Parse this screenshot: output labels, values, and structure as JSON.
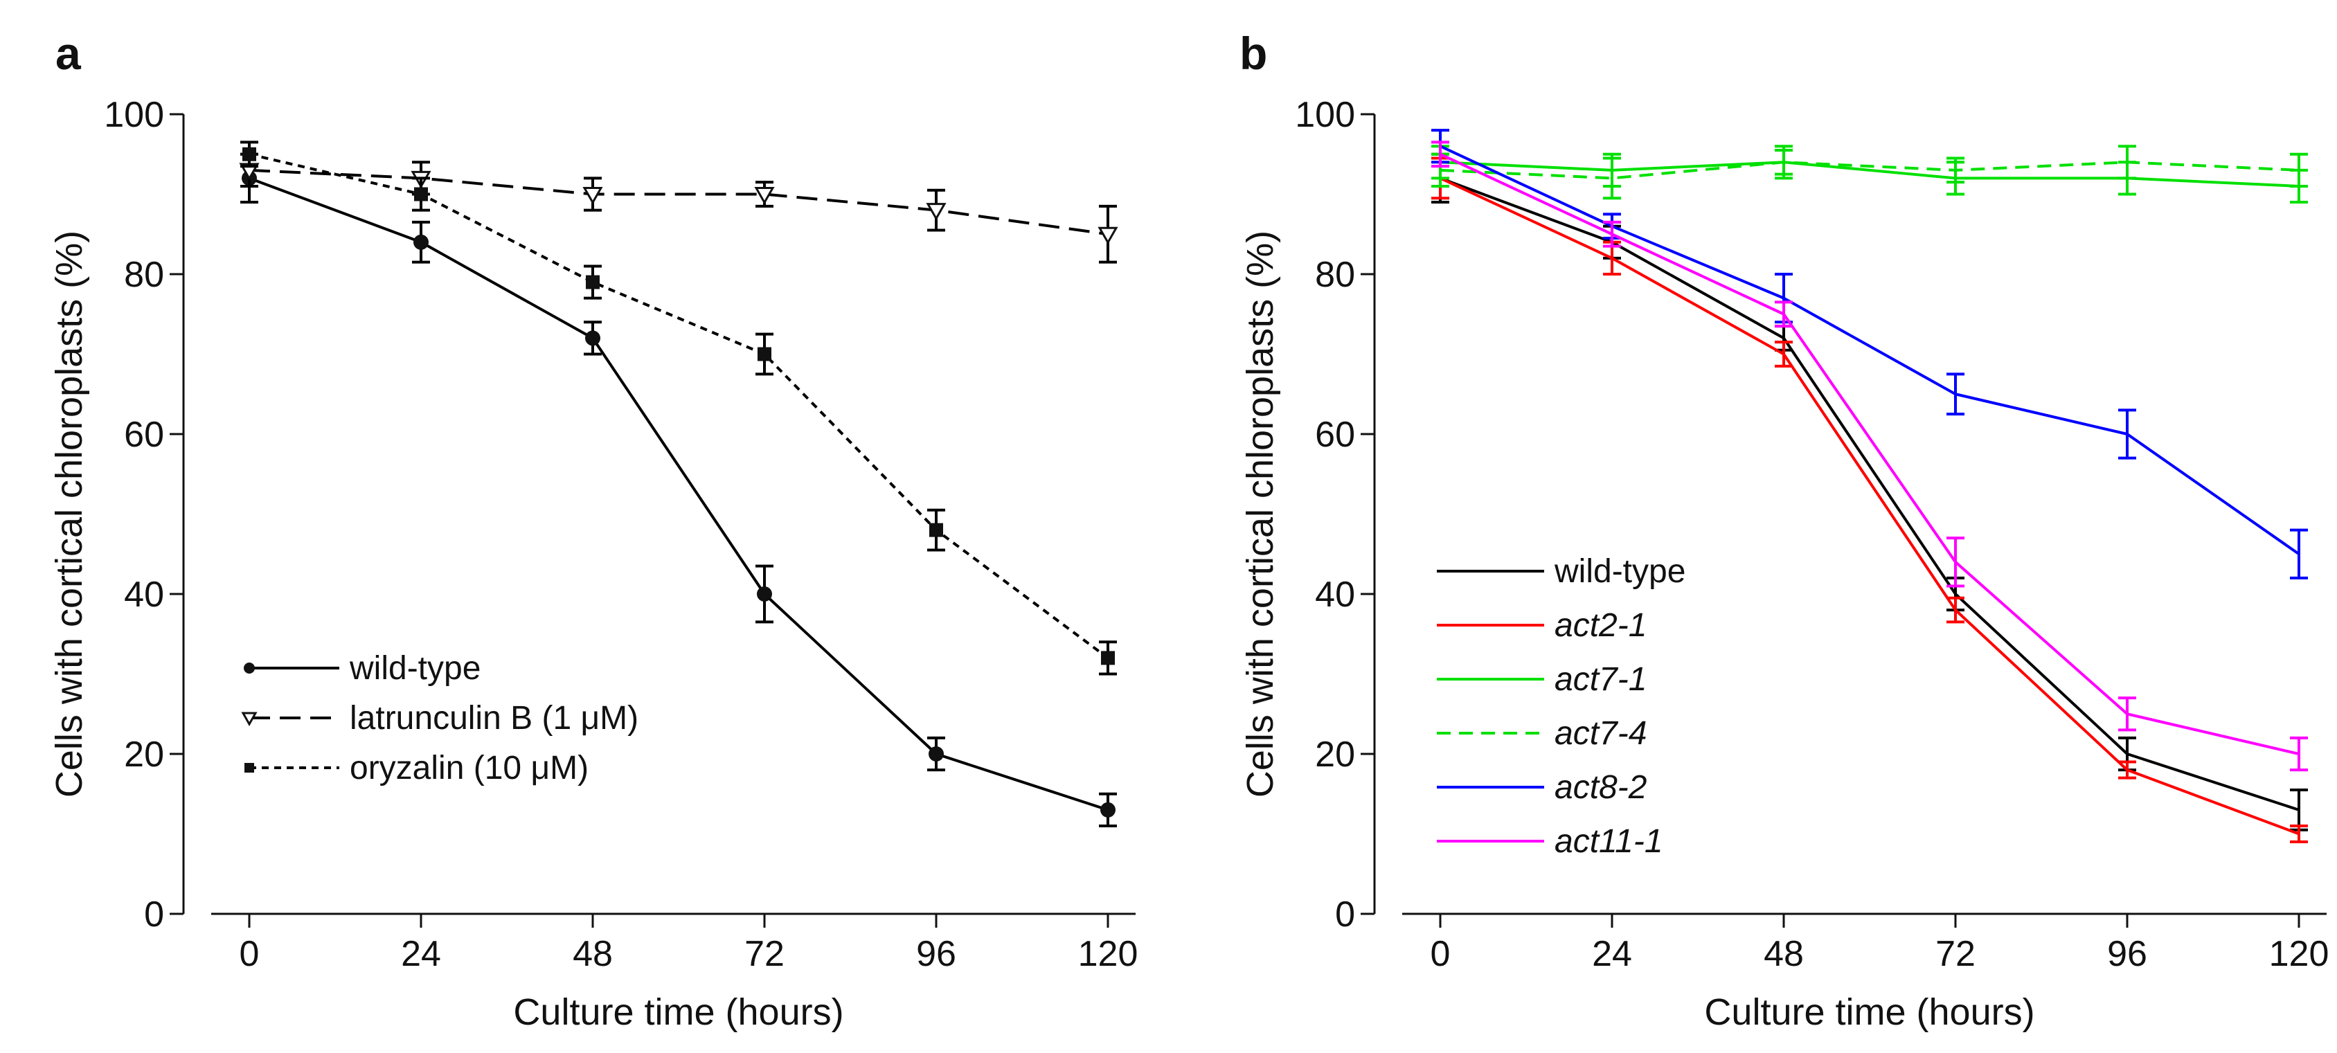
{
  "chart_data": [
    {
      "type": "line",
      "panel_label": "a",
      "title": "",
      "xlabel": "Culture time (hours)",
      "ylabel": "Cells with cortical chloroplasts (%)",
      "xlim": [
        0,
        120
      ],
      "ylim": [
        0,
        100
      ],
      "x_ticks": [
        "0",
        "24",
        "48",
        "72",
        "96",
        "120"
      ],
      "y_ticks": [
        "0",
        "20",
        "40",
        "60",
        "80",
        "100"
      ],
      "grid": false,
      "legend_position": "bottom-left",
      "x": [
        0,
        24,
        48,
        72,
        96,
        120
      ],
      "series": [
        {
          "name": "wild-type",
          "values": [
            92,
            84,
            72,
            40,
            20,
            13
          ],
          "errors": [
            3,
            2.5,
            2,
            3.5,
            2,
            2
          ],
          "color": "#000000",
          "dash": "solid",
          "marker": "circle"
        },
        {
          "name": "latrunculin B (1 μM)",
          "values": [
            93,
            92,
            90,
            90,
            88,
            85
          ],
          "errors": [
            2,
            2,
            2,
            1.5,
            2.5,
            3.5
          ],
          "color": "#000000",
          "dash": "long-dash",
          "marker": "triangle-down"
        },
        {
          "name": "oryzalin (10 μM)",
          "values": [
            95,
            90,
            79,
            70,
            48,
            32
          ],
          "errors": [
            1.5,
            2,
            2,
            2.5,
            2.5,
            2
          ],
          "color": "#000000",
          "dash": "short-dash",
          "marker": "square"
        }
      ]
    },
    {
      "type": "line",
      "panel_label": "b",
      "title": "",
      "xlabel": "Culture time (hours)",
      "ylabel": "Cells with cortical chloroplasts (%)",
      "xlim": [
        0,
        120
      ],
      "ylim": [
        0,
        100
      ],
      "x_ticks": [
        "0",
        "24",
        "48",
        "72",
        "96",
        "120"
      ],
      "y_ticks": [
        "0",
        "20",
        "40",
        "60",
        "80",
        "100"
      ],
      "grid": false,
      "legend_position": "bottom-left",
      "x": [
        0,
        24,
        48,
        72,
        96,
        120
      ],
      "series": [
        {
          "name": "wild-type",
          "values": [
            92,
            84,
            72,
            40,
            20,
            13
          ],
          "errors": [
            3,
            2,
            1.5,
            2,
            2,
            2.5
          ],
          "color": "#000000",
          "dash": "solid"
        },
        {
          "name": "act2-1",
          "values": [
            92,
            82,
            70,
            38,
            18,
            10
          ],
          "errors": [
            2.5,
            2,
            1.5,
            1.5,
            1,
            1
          ],
          "color": "#ff0000",
          "dash": "solid"
        },
        {
          "name": "act7-1",
          "values": [
            94,
            93,
            94,
            92,
            92,
            91
          ],
          "errors": [
            2,
            2,
            2,
            2,
            2,
            2
          ],
          "color": "#00e000",
          "dash": "solid"
        },
        {
          "name": "act7-4",
          "values": [
            93,
            92,
            94,
            93,
            94,
            93
          ],
          "errors": [
            2,
            2.5,
            1.5,
            1.5,
            2,
            2
          ],
          "color": "#00e000",
          "dash": "dashed"
        },
        {
          "name": "act8-2",
          "values": [
            96,
            86,
            77,
            65,
            60,
            45
          ],
          "errors": [
            2,
            1.5,
            3,
            2.5,
            3,
            3
          ],
          "color": "#0000ff",
          "dash": "solid"
        },
        {
          "name": "act11-1",
          "values": [
            95,
            85,
            75,
            44,
            25,
            20
          ],
          "errors": [
            1.5,
            1.5,
            1.5,
            3,
            2,
            2
          ],
          "color": "#ff00ff",
          "dash": "solid"
        }
      ]
    }
  ]
}
